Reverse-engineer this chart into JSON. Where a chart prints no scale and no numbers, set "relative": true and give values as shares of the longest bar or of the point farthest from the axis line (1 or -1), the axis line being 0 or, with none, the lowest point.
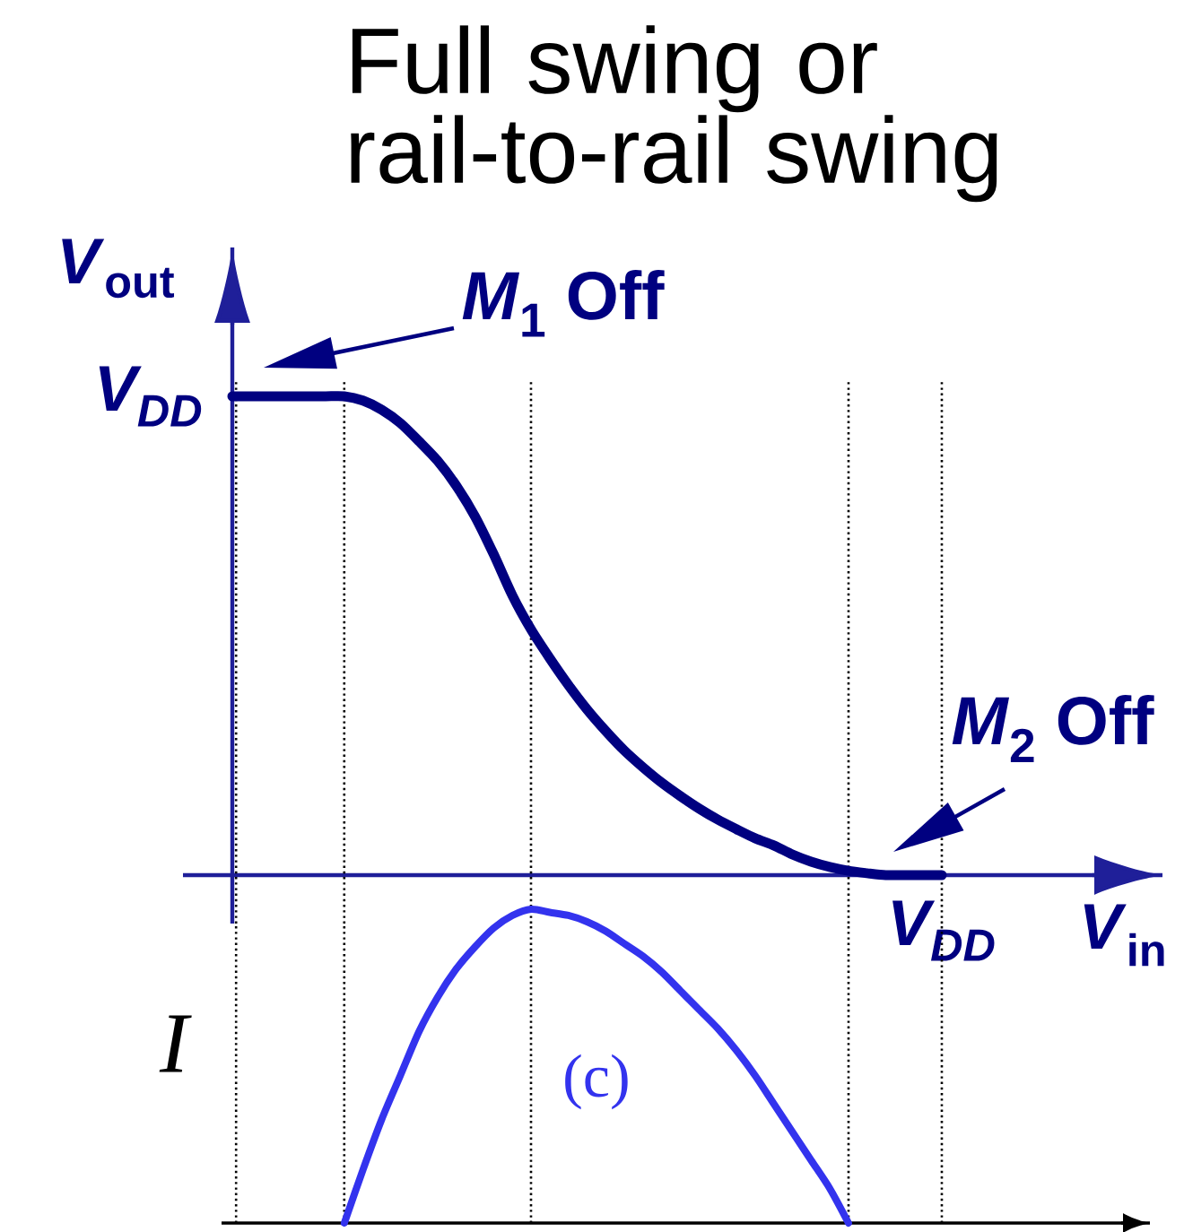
{
  "chart_data": [
    {
      "type": "line",
      "title": "Full swing or rail-to-rail swing",
      "xlabel": "*V*$_{in}$",
      "ylabel": "*V*$_{out}$",
      "relative": true,
      "grid": "x",
      "categories": [
        null,
        null,
        null,
        null,
        null,
        null,
        null,
        null,
        null,
        null,
        null,
        null,
        null,
        null,
        null,
        null,
        null,
        null,
        null,
        null,
        null,
        null,
        null,
        null,
        null,
        null,
        null,
        null,
        null,
        null,
        null,
        null,
        null,
        null,
        null,
        null,
        null,
        null,
        null
      ],
      "values": [
        1,
        1,
        1,
        1,
        1,
        1,
        1,
        0.991,
        0.972,
        0.944,
        0.906,
        0.865,
        0.813,
        0.749,
        0.67,
        0.584,
        0.513,
        0.453,
        0.397,
        0.346,
        0.301,
        0.26,
        0.225,
        0.193,
        0.165,
        0.139,
        0.116,
        0.096,
        0.077,
        0.062,
        0.043,
        0.028,
        0.017,
        0.009,
        0.004,
        0,
        0,
        0,
        0
      ],
      "color": "#000080",
      "annotations": [
        "V$_{DD}$",
        "V$_{DD}$",
        "*M*$_{1}$ Off",
        "*M*$_{2}$ Off"
      ]
    },
    {
      "type": "line",
      "ylabel": "I",
      "relative": true,
      "grid": "x",
      "categories": [
        null,
        null,
        null,
        null,
        null,
        null,
        null,
        null,
        null,
        null,
        null,
        null,
        null,
        null,
        null,
        null,
        null,
        null,
        null,
        null,
        null,
        null,
        null,
        null,
        null,
        null,
        null,
        null,
        null,
        null,
        null,
        null,
        null,
        null,
        null,
        null,
        null,
        null,
        null
      ],
      "values": [
        null,
        null,
        null,
        null,
        null,
        null,
        0,
        0.17,
        0.33,
        0.47,
        0.61,
        0.72,
        0.81,
        0.88,
        0.94,
        0.98,
        1,
        0.99,
        0.98,
        0.96,
        0.93,
        0.89,
        0.85,
        0.8,
        0.74,
        0.68,
        0.62,
        0.55,
        0.47,
        0.38,
        0.29,
        0.2,
        0.11,
        0,
        null,
        null,
        null,
        null,
        null
      ],
      "color": "#3333ee",
      "annotations": [
        "(c)"
      ]
    }
  ]
}
